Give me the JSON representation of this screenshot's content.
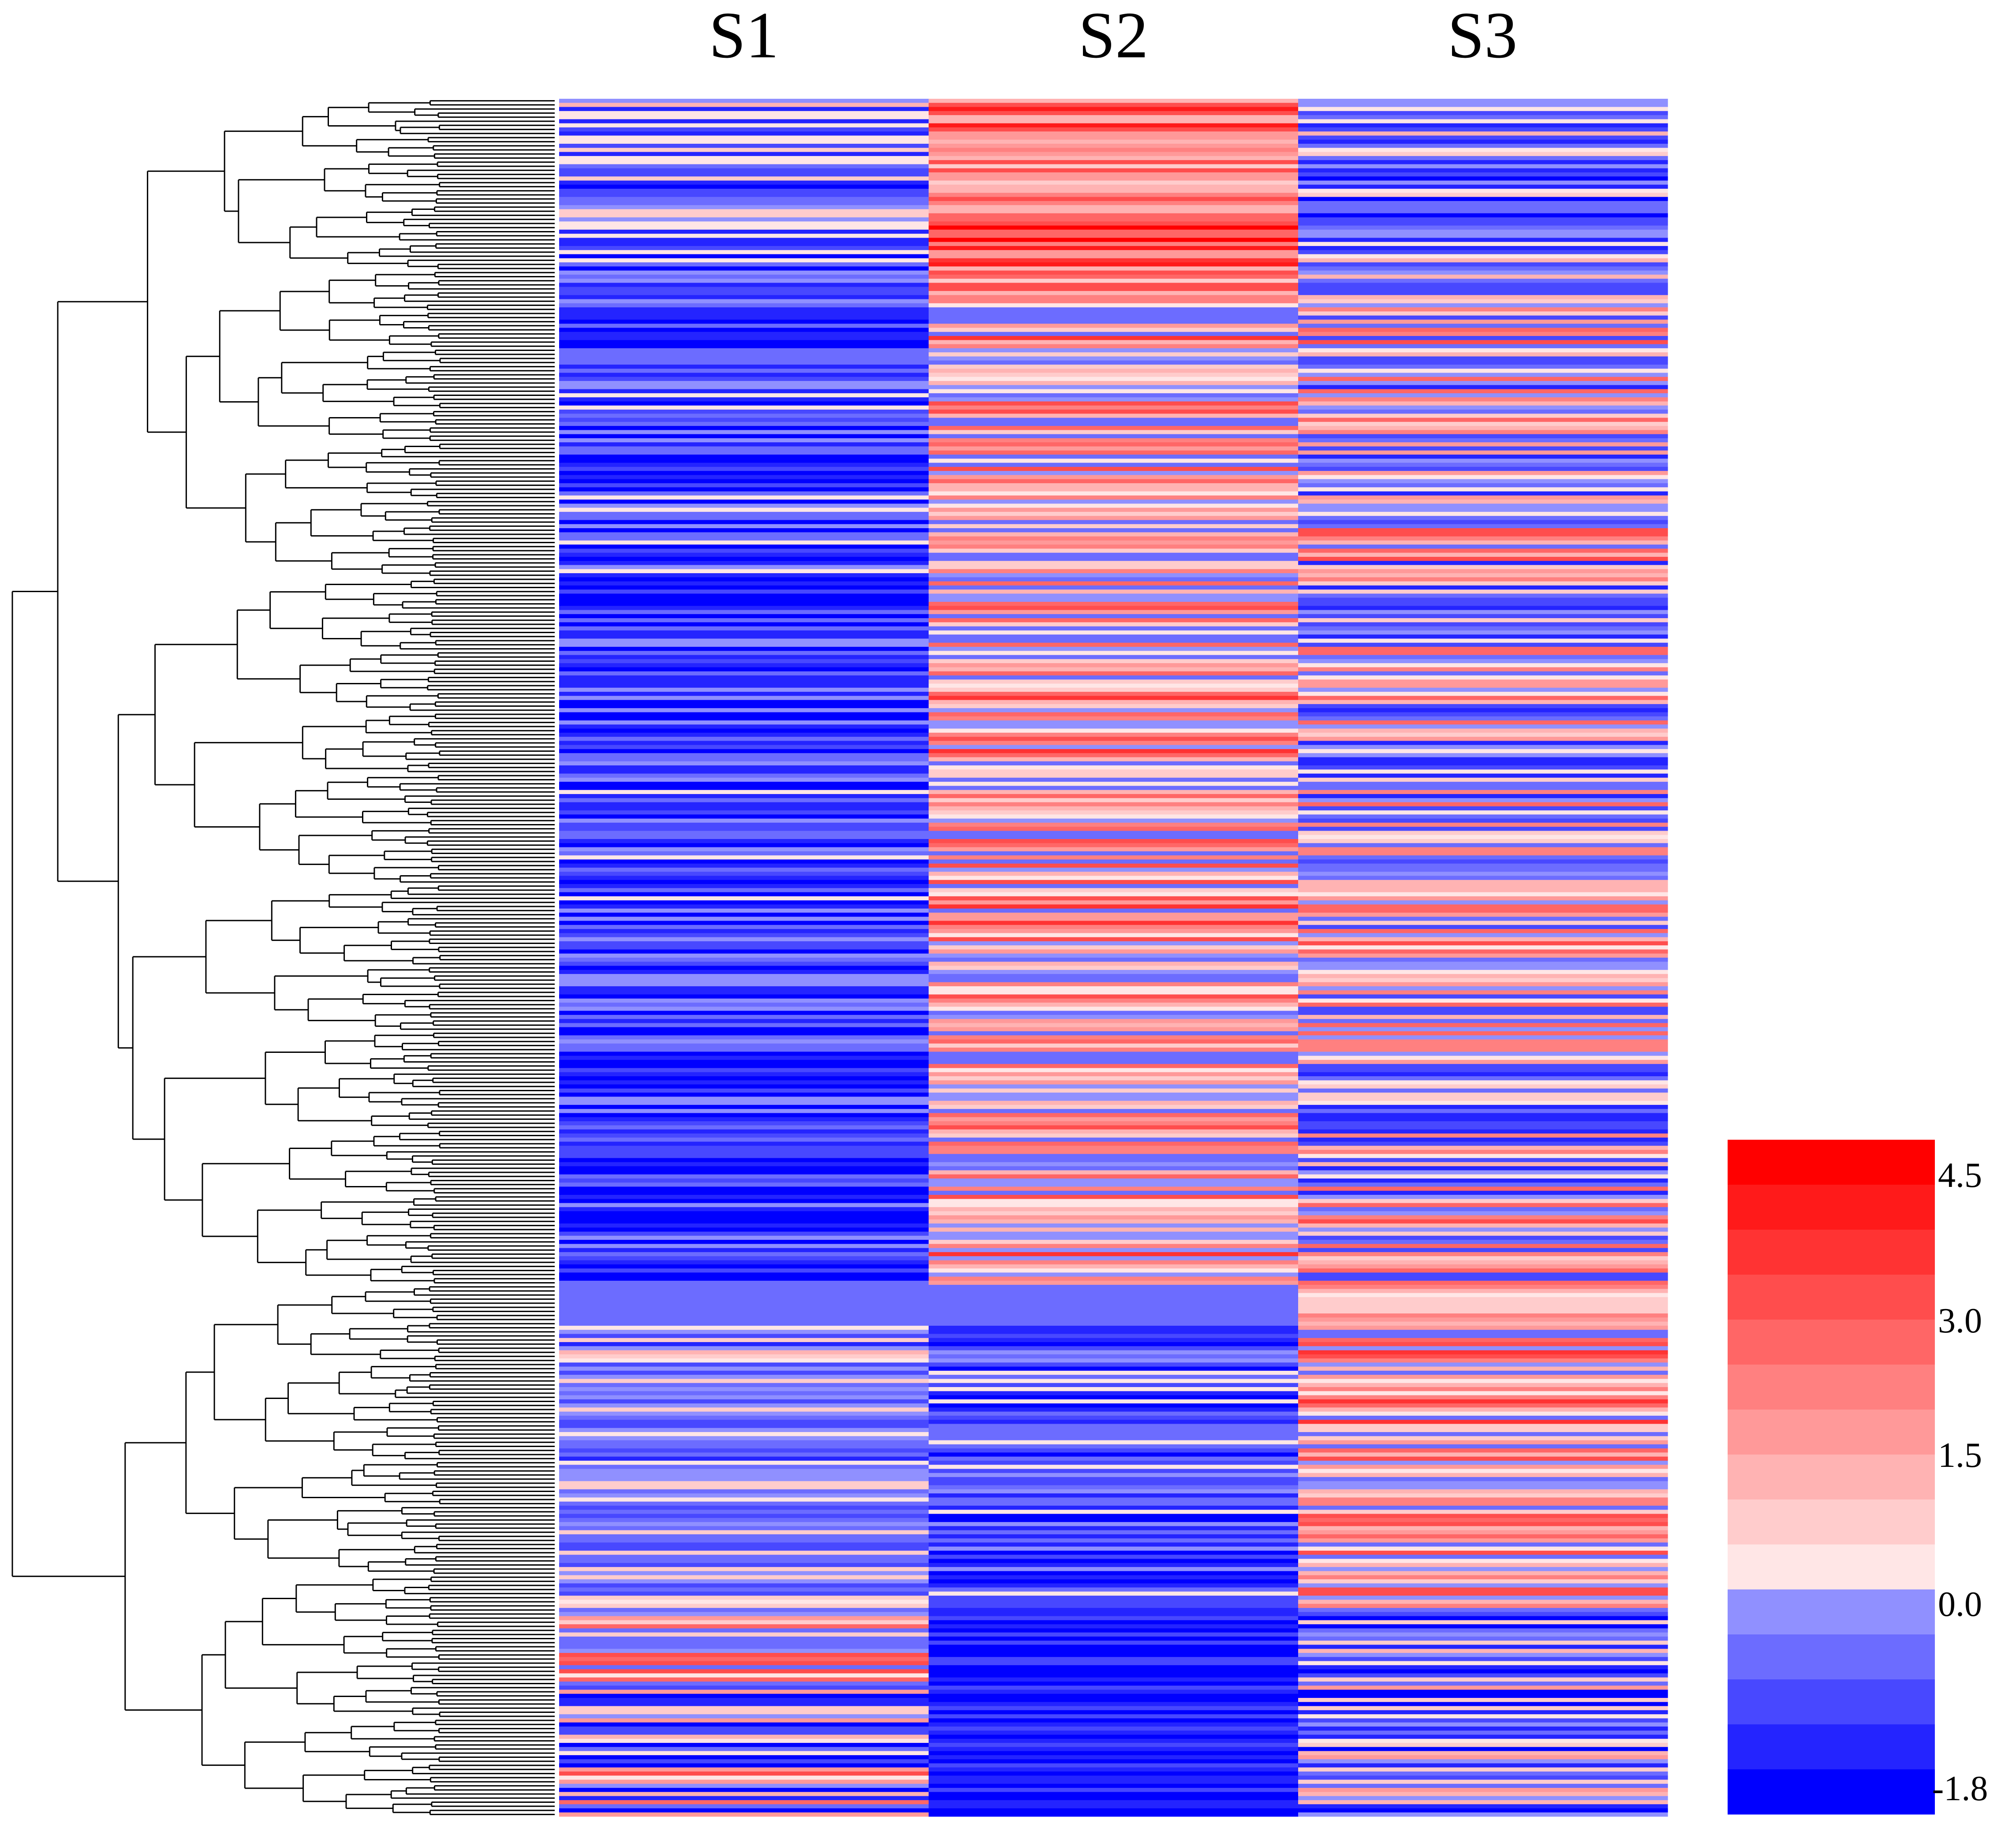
{
  "chart_data": {
    "type": "heatmap",
    "title": "",
    "columns": [
      "S1",
      "S2",
      "S3"
    ],
    "row_count": 420,
    "row_dendrogram": true,
    "color_scale": {
      "min": -1.8,
      "max": 4.5,
      "tick_labels": [
        "4.5",
        "3.0",
        "1.5",
        "0.0",
        "-1.8"
      ],
      "tick_values": [
        4.5,
        3.0,
        1.5,
        0.0,
        -1.8
      ],
      "bins": 15,
      "colors": {
        "high": "#ff0000",
        "mid_low": "#ffe6e6",
        "zero": "#9090ff",
        "low": "#0000ff"
      }
    },
    "row_blocks": [
      {
        "rows": [
          0,
          50
        ],
        "S1": [
          -1.5,
          1.2
        ],
        "S2": [
          0.8,
          4.5
        ],
        "S3": [
          -1.5,
          1.5
        ]
      },
      {
        "rows": [
          50,
          290
        ],
        "S1": [
          -1.8,
          0.4
        ],
        "S2": [
          -0.5,
          3.5
        ],
        "S3": [
          -1.2,
          3.0
        ]
      },
      {
        "rows": [
          290,
          300
        ],
        "S1": [
          -0.2,
          -0.2
        ],
        "S2": [
          -0.2,
          -0.2
        ],
        "S3": [
          0.5,
          4.2
        ]
      },
      {
        "rows": [
          300,
          370
        ],
        "S1": [
          -1.0,
          1.2
        ],
        "S2": [
          -1.5,
          0.8
        ],
        "S3": [
          -0.5,
          3.5
        ]
      },
      {
        "rows": [
          370,
          420
        ],
        "S1": [
          -1.6,
          3.5
        ],
        "S2": [
          -1.8,
          -0.6
        ],
        "S3": [
          -1.6,
          2.0
        ]
      }
    ],
    "legend_position": "bottom-right"
  }
}
